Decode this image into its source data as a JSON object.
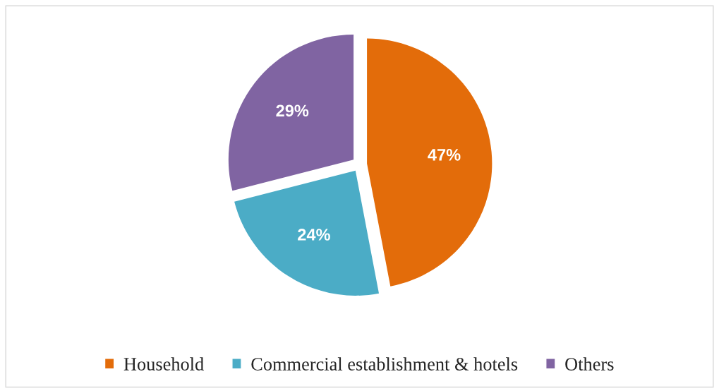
{
  "chart_data": {
    "type": "pie",
    "categories": [
      "Household",
      "Commercial establishment & hotels",
      "Others"
    ],
    "values": [
      47,
      24,
      29
    ],
    "colors": [
      "#e36c0a",
      "#4bacc6",
      "#8064a2"
    ],
    "value_labels": [
      "47%",
      "24%",
      "29%"
    ],
    "legend": "bottom"
  }
}
